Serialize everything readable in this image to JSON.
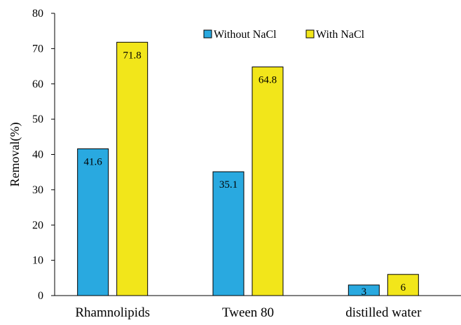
{
  "chart_data": {
    "type": "bar",
    "categories": [
      "Rhamnolipids",
      "Tween 80",
      "distilled water"
    ],
    "series": [
      {
        "name": "Without NaCl",
        "values": [
          41.6,
          35.1,
          3
        ],
        "labels": [
          "41.6",
          "35.1",
          "3"
        ],
        "color": "#29a9e0"
      },
      {
        "name": "With NaCl",
        "values": [
          71.8,
          64.8,
          6
        ],
        "labels": [
          "71.8",
          "64.8",
          "6"
        ],
        "color": "#f2e61a"
      }
    ],
    "xlabel": "",
    "ylabel": "Removal(%)",
    "ylim": [
      0,
      80
    ],
    "yticks": [
      "0",
      "10",
      "20",
      "30",
      "40",
      "50",
      "60",
      "70",
      "80"
    ],
    "grid": false,
    "legend": "top-center"
  }
}
